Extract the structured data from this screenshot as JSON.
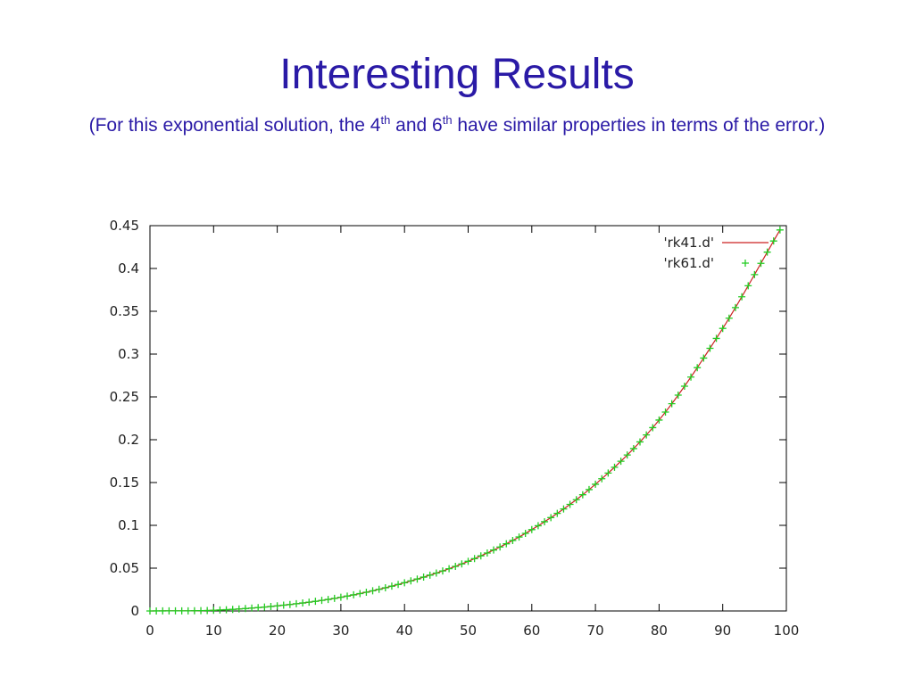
{
  "slide": {
    "title": "Interesting Results",
    "subtitle": {
      "part1": "(For this exponential solution, the 4",
      "sup1": "th",
      "part2": " and 6",
      "sup2": "th",
      "part3": " have similar properties in terms of the error.)"
    }
  },
  "colors": {
    "title": "#2a1aa6",
    "rk41": "#cc2222",
    "rk61": "#22cc22",
    "axis": "#000000"
  },
  "chart_data": {
    "type": "line",
    "xlim": [
      0,
      100
    ],
    "ylim": [
      0,
      0.45
    ],
    "xticks": [
      "0",
      "10",
      "20",
      "30",
      "40",
      "50",
      "60",
      "70",
      "80",
      "90",
      "100"
    ],
    "yticks": [
      "0",
      "0.05",
      "0.1",
      "0.15",
      "0.2",
      "0.25",
      "0.3",
      "0.35",
      "0.4",
      "0.45"
    ],
    "legend_position": "top-right",
    "grid": false,
    "series": [
      {
        "name": "'rk41.d'",
        "style": "line",
        "x": [
          0,
          10,
          20,
          30,
          40,
          50,
          60,
          70,
          80,
          90,
          99
        ],
        "y": [
          0,
          0.0008,
          0.006,
          0.016,
          0.033,
          0.058,
          0.095,
          0.148,
          0.223,
          0.33,
          0.445
        ]
      },
      {
        "name": "'rk61.d'",
        "style": "points",
        "marker": "+",
        "x": [
          0,
          10,
          20,
          30,
          40,
          50,
          60,
          70,
          80,
          90,
          99
        ],
        "y": [
          0,
          0.0008,
          0.006,
          0.016,
          0.033,
          0.058,
          0.095,
          0.148,
          0.223,
          0.33,
          0.445
        ]
      }
    ]
  }
}
